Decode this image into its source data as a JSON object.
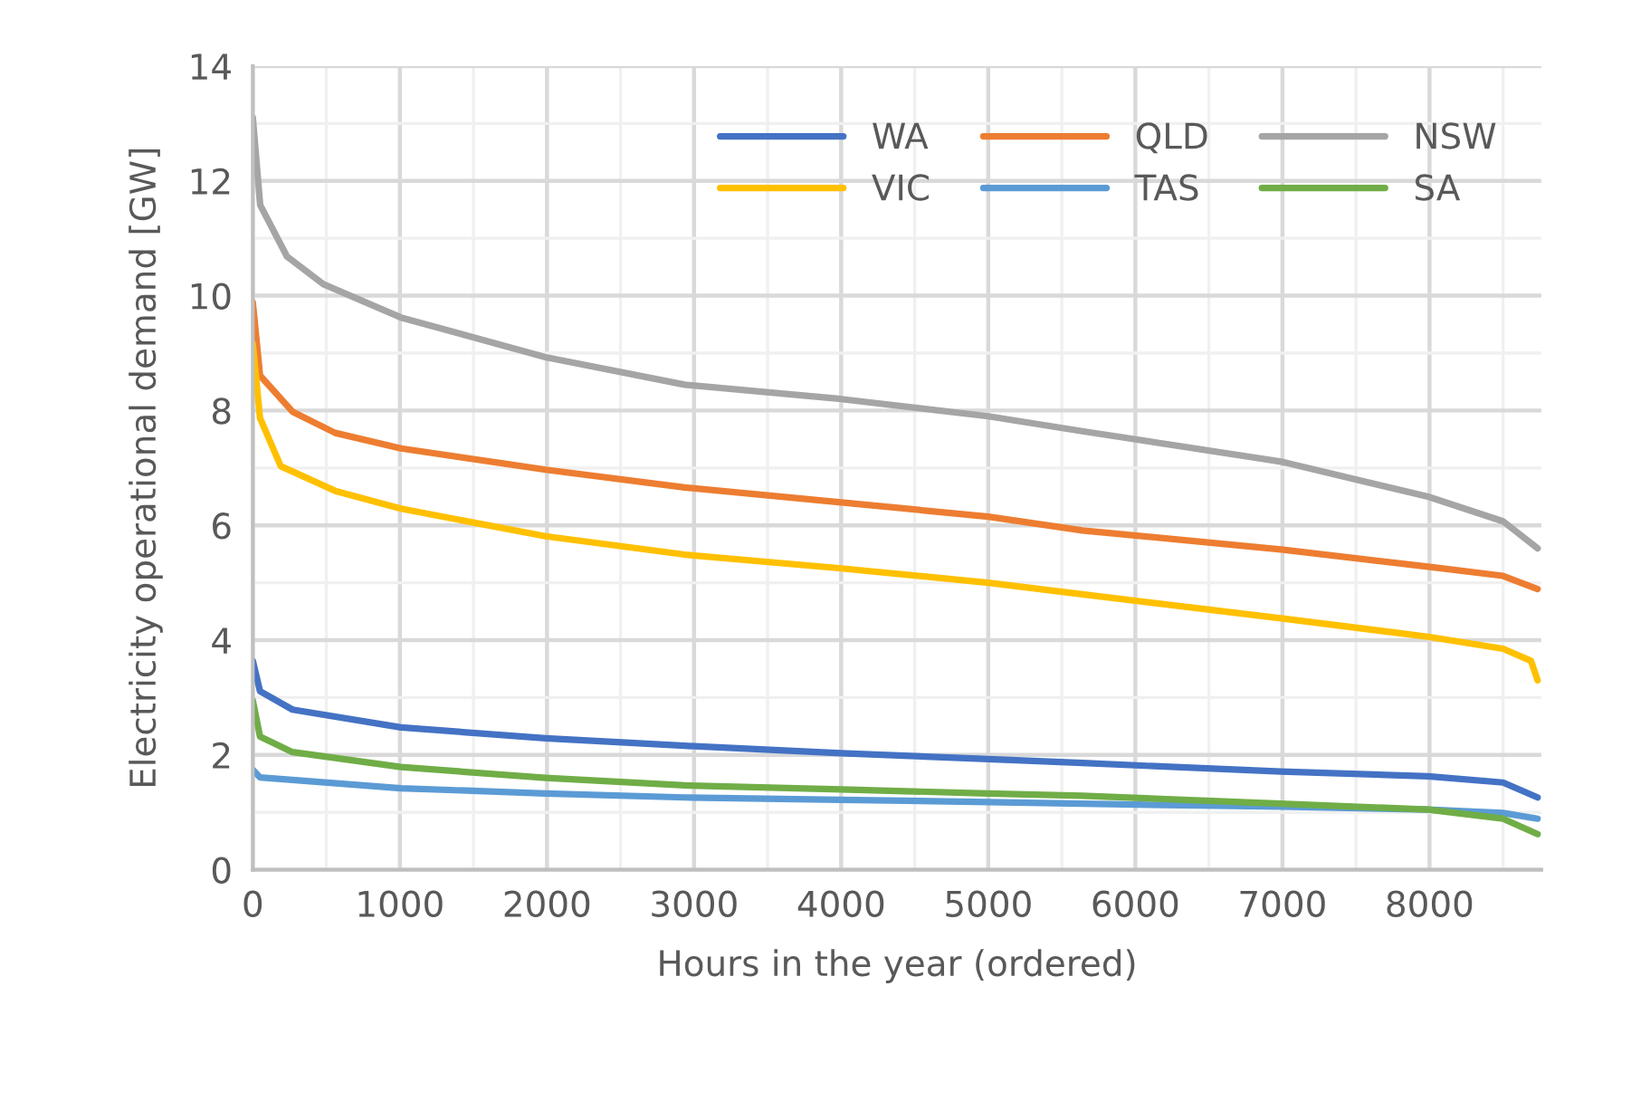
{
  "chart_data": {
    "type": "line",
    "xlabel": "Hours in the year (ordered)",
    "ylabel": "Electricity operational demand [GW]",
    "xlim": [
      0,
      8760
    ],
    "xticks": [
      0,
      1000,
      2000,
      3000,
      4000,
      5000,
      6000,
      7000,
      8000
    ],
    "ylim": [
      0,
      14
    ],
    "yticks": [
      0,
      2,
      4,
      6,
      8,
      10,
      12,
      14
    ],
    "grid": true,
    "legend": "top right",
    "marker": "none",
    "line_style": "solid",
    "series": [
      {
        "name": "WA",
        "color": "#4472c4",
        "x": [
          0,
          49,
          270,
          1007,
          1990,
          2936,
          4000,
          5000,
          5640,
          6990,
          7990,
          8500,
          8735
        ],
        "values": [
          3.64,
          3.11,
          2.79,
          2.48,
          2.29,
          2.16,
          2.03,
          1.93,
          1.86,
          1.71,
          1.63,
          1.52,
          1.26
        ]
      },
      {
        "name": "QLD",
        "color": "#ed7d31",
        "x": [
          0,
          49,
          270,
          560,
          1007,
          1990,
          2936,
          4000,
          5000,
          5640,
          6990,
          7990,
          8500,
          8735
        ],
        "values": [
          9.88,
          8.61,
          7.98,
          7.61,
          7.34,
          6.97,
          6.66,
          6.4,
          6.15,
          5.91,
          5.58,
          5.28,
          5.12,
          4.89
        ]
      },
      {
        "name": "NSW",
        "color": "#a5a5a5",
        "x": [
          0,
          50,
          233,
          480,
          1007,
          1990,
          2936,
          4000,
          5000,
          5640,
          6990,
          7990,
          8500,
          8735
        ],
        "values": [
          13.1,
          11.58,
          10.68,
          10.2,
          9.62,
          8.93,
          8.45,
          8.2,
          7.9,
          7.64,
          7.11,
          6.5,
          6.07,
          5.6
        ]
      },
      {
        "name": "VIC",
        "color": "#ffc000",
        "x": [
          0,
          49,
          190,
          560,
          1007,
          1990,
          2936,
          4000,
          5000,
          5640,
          6990,
          7990,
          8500,
          8690,
          8735
        ],
        "values": [
          9.16,
          7.87,
          7.03,
          6.6,
          6.29,
          5.81,
          5.49,
          5.25,
          5.0,
          4.8,
          4.38,
          4.06,
          3.85,
          3.64,
          3.3
        ]
      },
      {
        "name": "TAS",
        "color": "#5b9bd5",
        "x": [
          0,
          49,
          1007,
          1990,
          2936,
          4000,
          5000,
          5640,
          6990,
          7990,
          8500,
          8735
        ],
        "values": [
          1.74,
          1.61,
          1.42,
          1.33,
          1.26,
          1.22,
          1.18,
          1.15,
          1.1,
          1.05,
          0.99,
          0.89
        ]
      },
      {
        "name": "SA",
        "color": "#70ad47",
        "x": [
          0,
          49,
          270,
          1007,
          1990,
          2936,
          4000,
          5000,
          5640,
          6990,
          7990,
          8500,
          8735
        ],
        "values": [
          2.95,
          2.32,
          2.05,
          1.79,
          1.6,
          1.47,
          1.4,
          1.33,
          1.29,
          1.15,
          1.05,
          0.89,
          0.62
        ]
      }
    ]
  }
}
